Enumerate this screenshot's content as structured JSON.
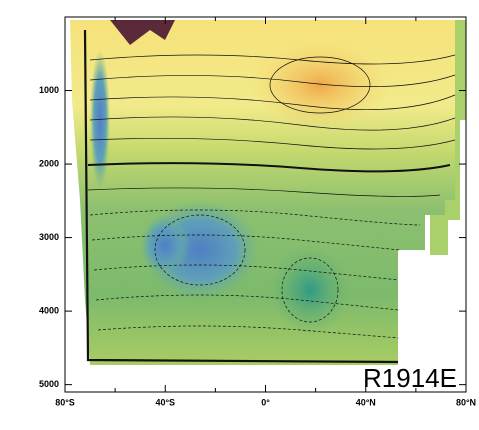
{
  "chart_data": {
    "type": "contour",
    "annotation": "R1914E",
    "xlim": [
      -80,
      80
    ],
    "xticks": [
      {
        "value": -80,
        "label": "80°S"
      },
      {
        "value": -40,
        "label": "40°S"
      },
      {
        "value": 0,
        "label": "0°"
      },
      {
        "value": 40,
        "label": "40°N"
      },
      {
        "value": 80,
        "label": "80°N"
      }
    ],
    "xminorticks": [
      -60,
      -20,
      20,
      60
    ],
    "ylim": [
      0,
      5100
    ],
    "y_inverted": true,
    "yticks": [
      1000,
      2000,
      3000,
      4000,
      5000
    ]
  }
}
